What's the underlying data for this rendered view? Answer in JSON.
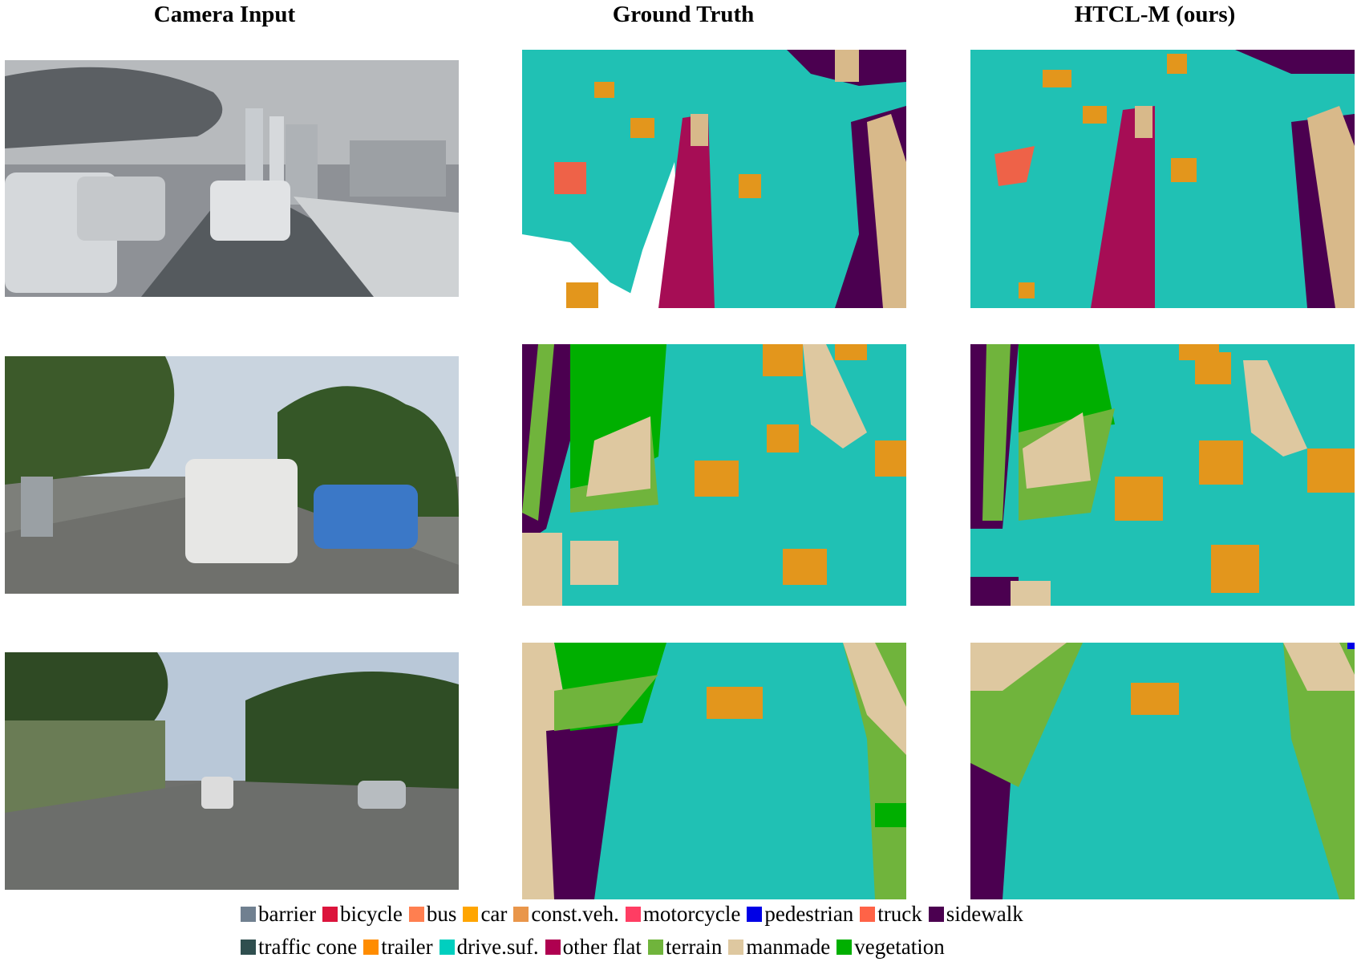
{
  "columns": {
    "camera": "Camera Input",
    "gt": "Ground Truth",
    "pred": "HTCL-M (ours)"
  },
  "legend": {
    "row1": [
      {
        "label": "barrier",
        "color": "#708090"
      },
      {
        "label": "bicycle",
        "color": "#dc143c"
      },
      {
        "label": "bus",
        "color": "#ff7f50"
      },
      {
        "label": "car",
        "color": "#ffa500"
      },
      {
        "label": "const.veh.",
        "color": "#e9964a"
      },
      {
        "label": "motorcycle",
        "color": "#ff3d63"
      },
      {
        "label": "pedestrian",
        "color": "#0000e6"
      },
      {
        "label": "truck",
        "color": "#ff6347"
      },
      {
        "label": "sidewalk",
        "color": "#4b0050"
      }
    ],
    "row2": [
      {
        "label": "traffic cone",
        "color": "#2f4f4f"
      },
      {
        "label": "trailer",
        "color": "#ff8c00"
      },
      {
        "label": "drive.suf.",
        "color": "#00cfbf"
      },
      {
        "label": "other flat",
        "color": "#af0050"
      },
      {
        "label": "terrain",
        "color": "#70b43c"
      },
      {
        "label": "manmade",
        "color": "#dec8a0"
      },
      {
        "label": "vegetation",
        "color": "#00af00"
      }
    ]
  }
}
